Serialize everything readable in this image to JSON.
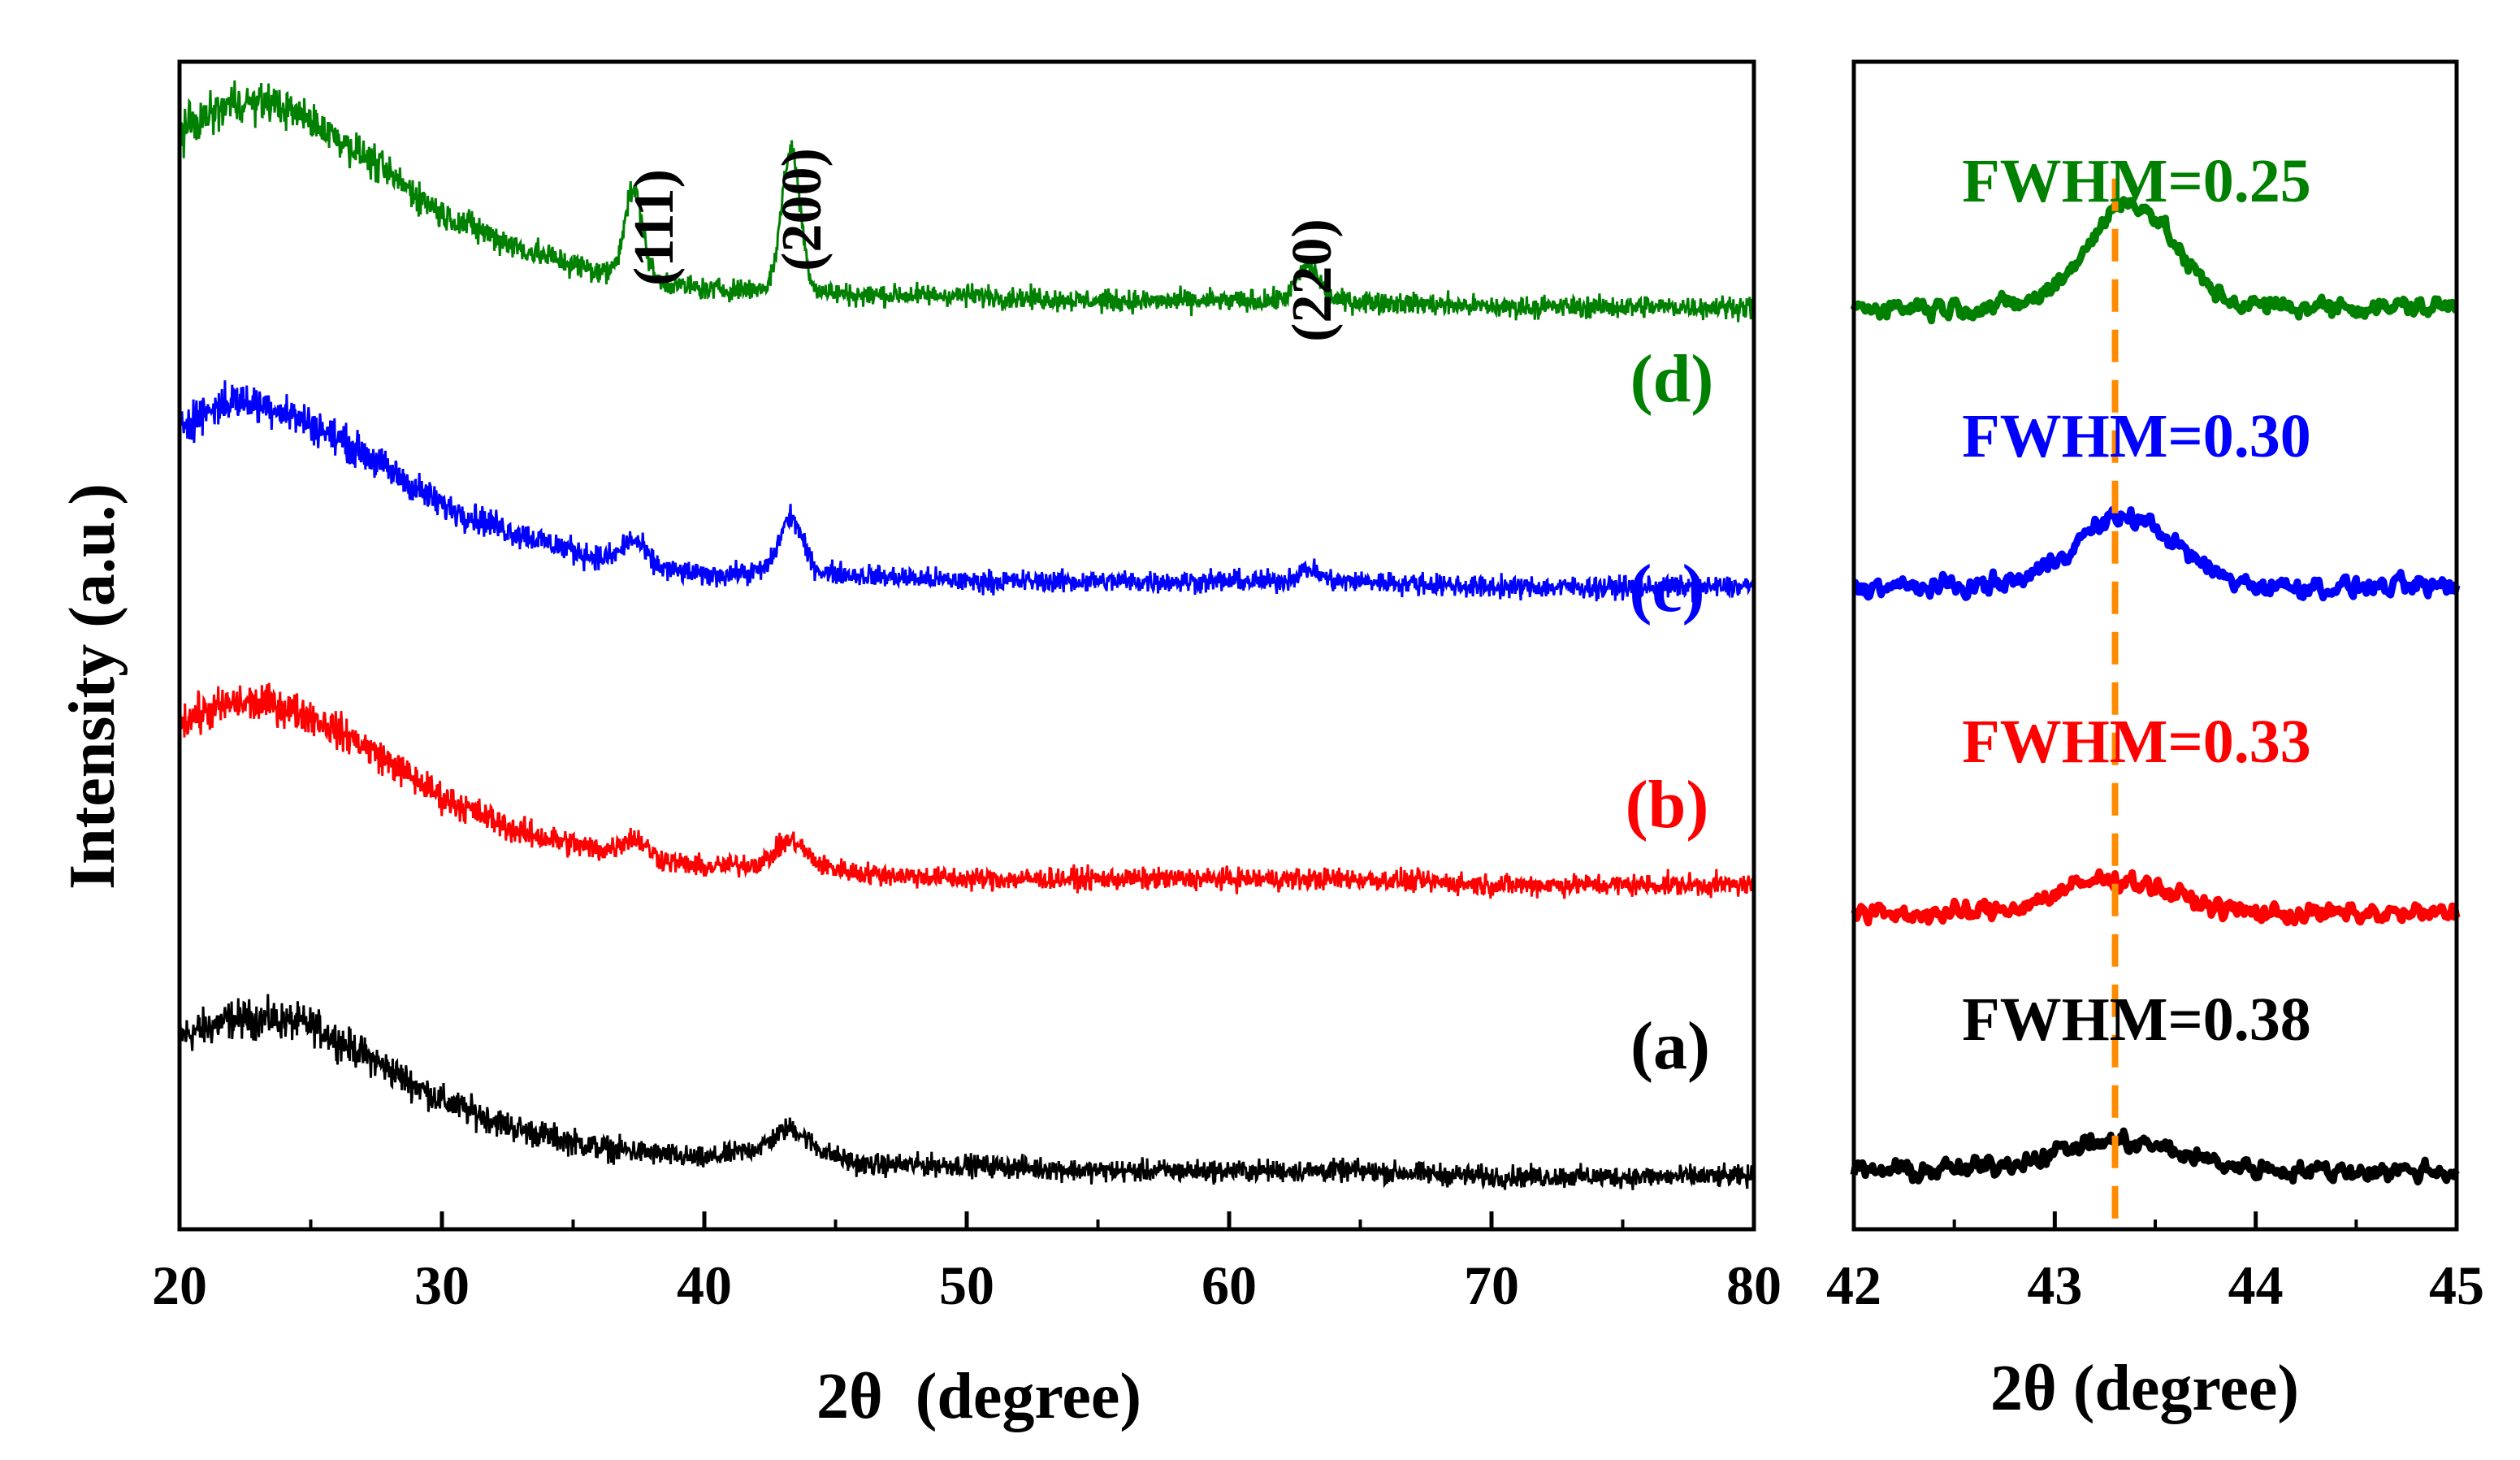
{
  "chart_data": [
    {
      "type": "line",
      "panel": "left",
      "xlabel": "2θ  (degree)",
      "ylabel": "Intensity (a.u.)",
      "xlim": [
        20,
        80
      ],
      "xticks": [
        20,
        30,
        40,
        50,
        60,
        70,
        80
      ],
      "yticks_shown": false,
      "peak_labels": [
        {
          "text": "(111)",
          "x": 37.3
        },
        {
          "text": "(200)",
          "x": 43.3
        },
        {
          "text": "(220)",
          "x": 63.0
        }
      ],
      "series": [
        {
          "name": "(a)",
          "color": "#000000",
          "x": [
            20,
            22,
            23.5,
            25,
            27,
            30,
            33,
            36,
            40,
            43.3,
            46,
            50,
            55,
            60,
            65,
            70,
            75,
            80
          ],
          "y": [
            0.165,
            0.18,
            0.18,
            0.175,
            0.15,
            0.11,
            0.085,
            0.07,
            0.06,
            0.075,
            0.055,
            0.055,
            0.05,
            0.05,
            0.05,
            0.045,
            0.045,
            0.045
          ],
          "peaks": [
            {
              "x": 43.3,
              "height": 0.012,
              "width": 0.8
            }
          ]
        },
        {
          "name": "(b)",
          "color": "#ff0000",
          "x": [
            20,
            22,
            23.5,
            25,
            27,
            30,
            33,
            36,
            40,
            43.3,
            46,
            50,
            55,
            60,
            65,
            70,
            75,
            80
          ],
          "y": [
            0.435,
            0.45,
            0.45,
            0.44,
            0.415,
            0.37,
            0.34,
            0.325,
            0.31,
            0.315,
            0.305,
            0.3,
            0.3,
            0.3,
            0.3,
            0.295,
            0.295,
            0.295
          ],
          "peaks": [
            {
              "x": 37.3,
              "height": 0.015,
              "width": 0.7
            },
            {
              "x": 43.3,
              "height": 0.018,
              "width": 0.75
            }
          ]
        },
        {
          "name": "(c)",
          "color": "#0000ff",
          "x": [
            20,
            22,
            23.5,
            25,
            27,
            30,
            33,
            36,
            40,
            43.3,
            46,
            50,
            55,
            60,
            65,
            70,
            75,
            80
          ],
          "y": [
            0.69,
            0.71,
            0.705,
            0.69,
            0.665,
            0.62,
            0.595,
            0.575,
            0.56,
            0.565,
            0.56,
            0.555,
            0.555,
            0.555,
            0.555,
            0.55,
            0.55,
            0.55
          ],
          "peaks": [
            {
              "x": 37.3,
              "height": 0.02,
              "width": 0.6
            },
            {
              "x": 43.3,
              "height": 0.045,
              "width": 0.6
            },
            {
              "x": 63.0,
              "height": 0.01,
              "width": 0.6
            }
          ]
        },
        {
          "name": "(d)",
          "color": "#008000",
          "x": [
            20,
            22,
            23.5,
            25,
            27,
            30,
            33,
            36,
            40,
            43.3,
            46,
            50,
            55,
            60,
            65,
            70,
            75,
            80
          ],
          "y": [
            0.94,
            0.965,
            0.965,
            0.95,
            0.92,
            0.87,
            0.84,
            0.82,
            0.805,
            0.805,
            0.8,
            0.8,
            0.795,
            0.795,
            0.795,
            0.79,
            0.79,
            0.79
          ],
          "peaks": [
            {
              "x": 37.3,
              "height": 0.075,
              "width": 0.5
            },
            {
              "x": 43.3,
              "height": 0.12,
              "width": 0.5
            },
            {
              "x": 63.0,
              "height": 0.03,
              "width": 0.6
            }
          ]
        }
      ]
    },
    {
      "type": "line",
      "panel": "right",
      "xlabel": "2θ (degree)",
      "xlim": [
        42,
        45
      ],
      "xticks": [
        42,
        43,
        44,
        45
      ],
      "reference_line": {
        "x": 43.3,
        "color": "#ff8c00",
        "style": "dashed"
      },
      "series": [
        {
          "name": "FWHM=0.38",
          "color": "#000000",
          "baseline": 0.05,
          "peak": {
            "x": 43.3,
            "height": 0.025,
            "fwhm": 0.38
          }
        },
        {
          "name": "FWHM=0.33",
          "color": "#ff0000",
          "baseline": 0.27,
          "peak": {
            "x": 43.3,
            "height": 0.03,
            "fwhm": 0.33
          }
        },
        {
          "name": "FWHM=0.30",
          "color": "#0000ff",
          "baseline": 0.55,
          "peak": {
            "x": 43.35,
            "height": 0.06,
            "fwhm": 0.3
          }
        },
        {
          "name": "FWHM=0.25",
          "color": "#008000",
          "baseline": 0.79,
          "peak": {
            "x": 43.38,
            "height": 0.09,
            "fwhm": 0.25
          }
        }
      ]
    }
  ]
}
